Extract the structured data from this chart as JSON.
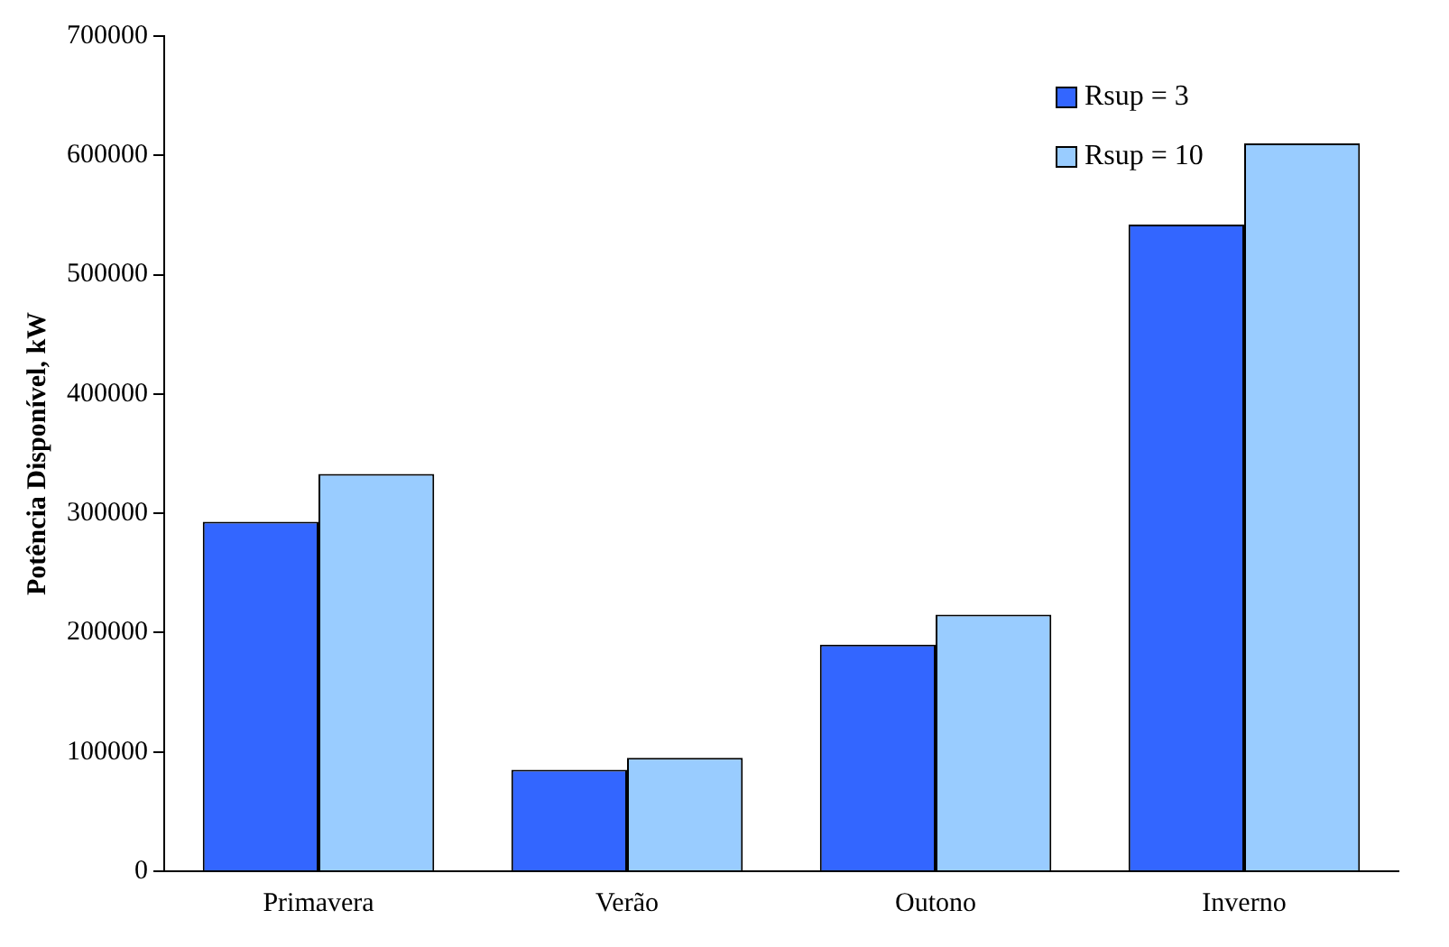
{
  "chart_data": {
    "type": "bar",
    "ylabel": "Potência Disponível, kW",
    "categories": [
      "Primavera",
      "Verão",
      "Outono",
      "Inverno"
    ],
    "series": [
      {
        "name": "Rsup = 3",
        "color": "#3366ff",
        "values": [
          293000,
          85000,
          190000,
          542000
        ]
      },
      {
        "name": "Rsup = 10",
        "color": "#99ccff",
        "values": [
          333000,
          95000,
          215000,
          610000
        ]
      }
    ],
    "ylim": [
      0,
      700000
    ],
    "yticks": [
      0,
      100000,
      200000,
      300000,
      400000,
      500000,
      600000,
      700000
    ],
    "grid": false,
    "legend": "top right"
  }
}
